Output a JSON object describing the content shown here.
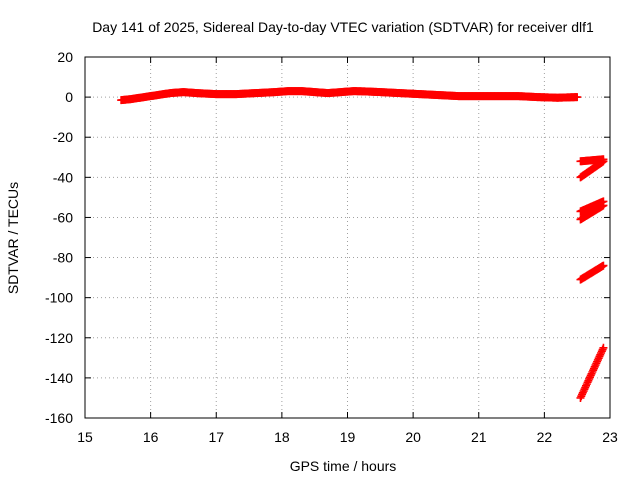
{
  "chart_data": {
    "type": "scatter",
    "title": "Day 141 of 2025, Sidereal Day-to-day VTEC variation (SDTVAR) for receiver dlf1",
    "xlabel": "GPS time / hours",
    "ylabel": "SDTVAR / TECUs",
    "xlim": [
      15,
      23
    ],
    "ylim": [
      -160,
      20
    ],
    "xticks": [
      15,
      16,
      17,
      18,
      19,
      20,
      21,
      22,
      23
    ],
    "yticks": [
      20,
      0,
      -20,
      -40,
      -60,
      -80,
      -100,
      -120,
      -140,
      -160
    ],
    "grid": true,
    "marker": "plus",
    "color": "#ff0000",
    "series": [
      {
        "x": [
          15.55,
          15.7,
          15.9,
          16.1,
          16.3,
          16.5,
          16.7,
          17.0,
          17.3,
          17.6,
          17.9,
          18.1,
          18.3,
          18.5,
          18.7,
          18.9,
          19.1,
          19.3,
          19.5,
          19.8,
          20.1,
          20.4,
          20.7,
          21.0,
          21.3,
          21.6,
          21.9,
          22.2,
          22.5
        ],
        "y": [
          -1.5,
          -1,
          0,
          1,
          2,
          2.5,
          2,
          1.5,
          1.5,
          2,
          2.5,
          3,
          3,
          2.5,
          2,
          2.5,
          3,
          2.8,
          2.5,
          2,
          1.5,
          1,
          0.5,
          0.5,
          0.5,
          0.5,
          0,
          -0.3,
          0
        ]
      },
      {
        "x": [
          22.55,
          22.9
        ],
        "y": [
          -32,
          -31
        ]
      },
      {
        "x": [
          22.55,
          22.9
        ],
        "y": [
          -40,
          -32
        ]
      },
      {
        "x": [
          22.55,
          22.9
        ],
        "y": [
          -57,
          -52
        ]
      },
      {
        "x": [
          22.55,
          22.9
        ],
        "y": [
          -61,
          -54
        ]
      },
      {
        "x": [
          22.55,
          22.9
        ],
        "y": [
          -91,
          -84
        ]
      },
      {
        "x": [
          22.55,
          22.9
        ],
        "y": [
          -150,
          -125
        ]
      }
    ]
  }
}
